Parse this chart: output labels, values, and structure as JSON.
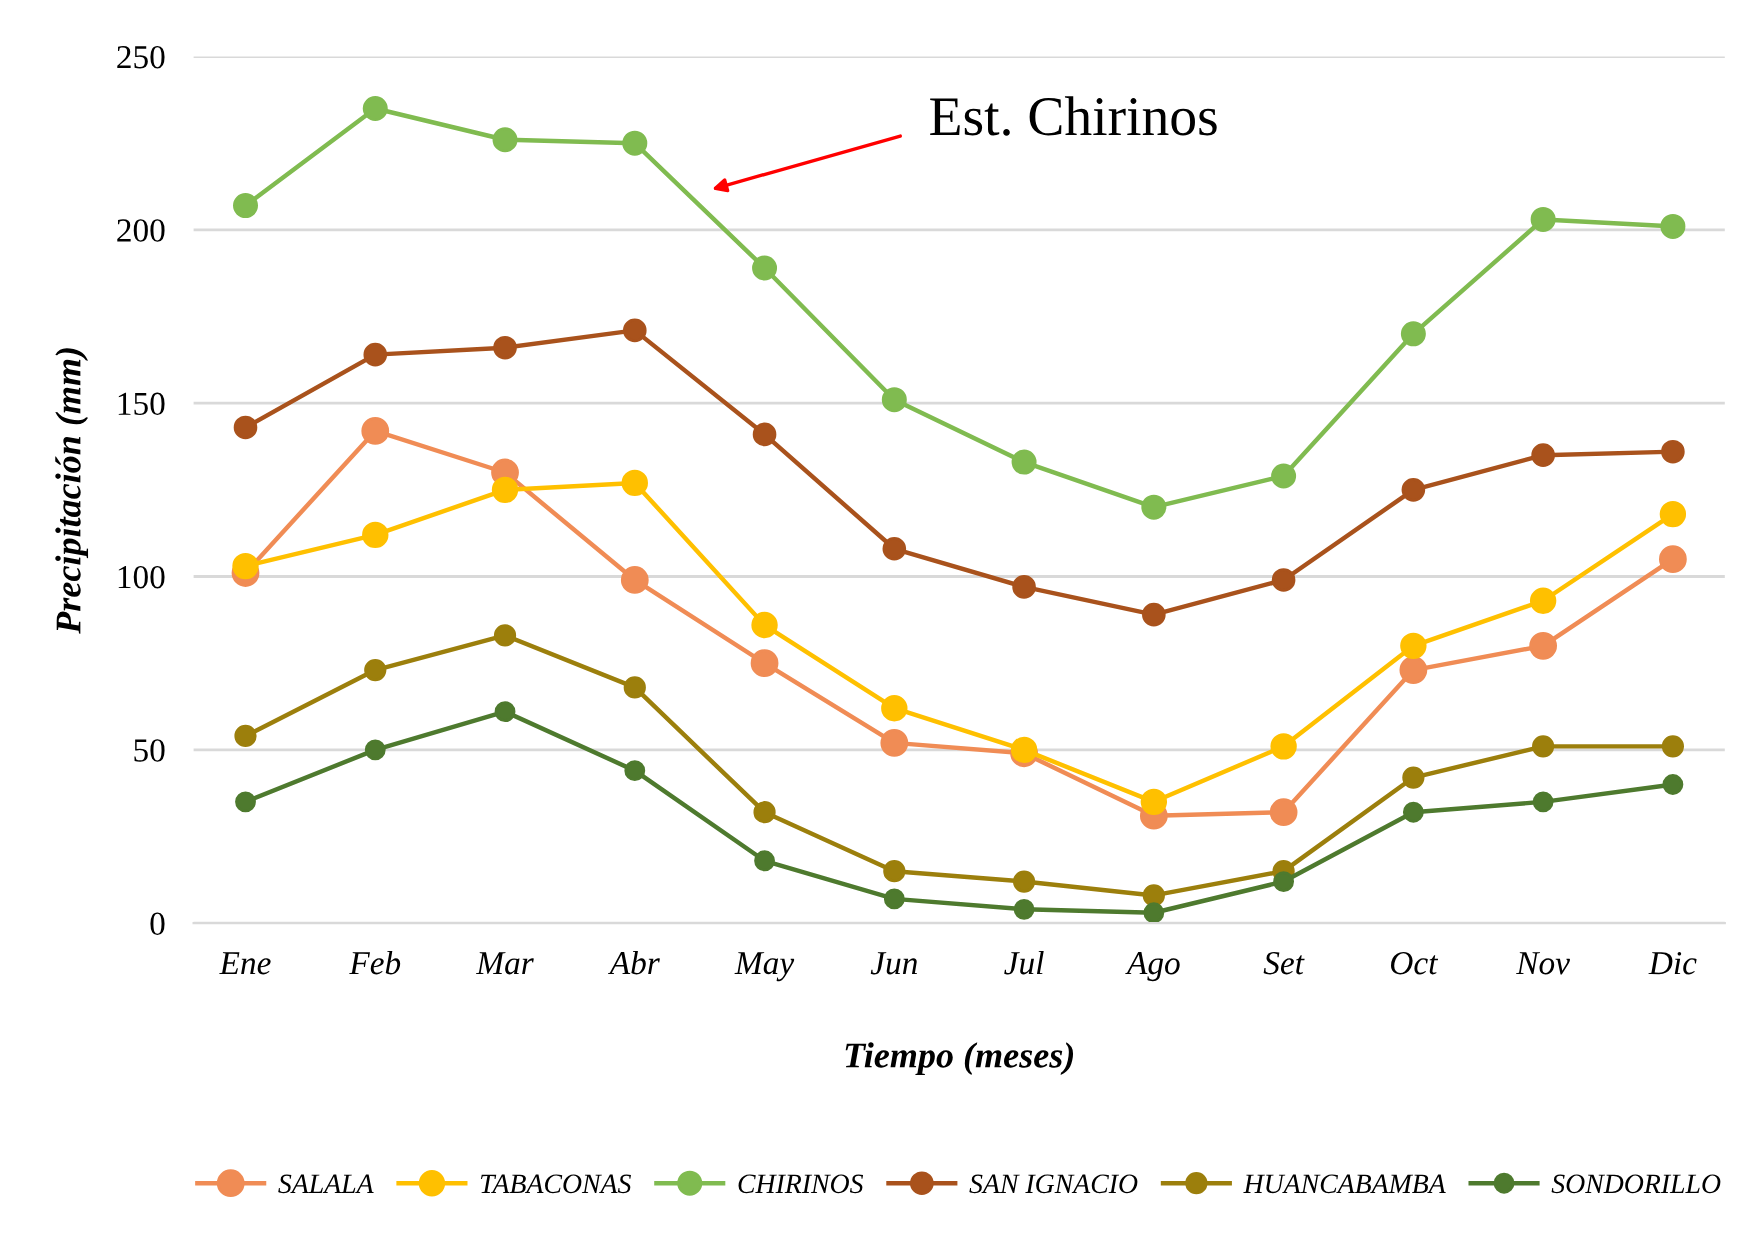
{
  "chart_data": {
    "type": "line",
    "xlabel": "Tiempo (meses)",
    "ylabel": "Precipitación (mm)",
    "categories": [
      "Ene",
      "Feb",
      "Mar",
      "Abr",
      "May",
      "Jun",
      "Jul",
      "Ago",
      "Set",
      "Oct",
      "Nov",
      "Dic"
    ],
    "series": [
      {
        "name": "SALALA",
        "color": "#f08c55",
        "values": [
          101,
          142,
          130,
          99,
          75,
          52,
          49,
          31,
          32,
          73,
          80,
          105
        ]
      },
      {
        "name": "TABACONAS",
        "color": "#ffc000",
        "values": [
          103,
          112,
          125,
          127,
          86,
          62,
          50,
          35,
          51,
          80,
          93,
          118
        ]
      },
      {
        "name": "CHIRINOS",
        "color": "#80bb50",
        "values": [
          207,
          235,
          226,
          225,
          189,
          151,
          133,
          120,
          129,
          170,
          203,
          201
        ]
      },
      {
        "name": "SAN IGNACIO",
        "color": "#a9521c",
        "values": [
          143,
          164,
          166,
          171,
          141,
          108,
          97,
          89,
          99,
          125,
          135,
          136
        ]
      },
      {
        "name": "HUANCABAMBA",
        "color": "#9c7f0c",
        "values": [
          54,
          73,
          83,
          68,
          32,
          15,
          12,
          8,
          15,
          42,
          51,
          51
        ]
      },
      {
        "name": "SONDORILLO",
        "color": "#4e7a2e",
        "values": [
          35,
          50,
          61,
          44,
          18,
          7,
          4,
          3,
          12,
          32,
          35,
          40
        ]
      }
    ],
    "ylim": [
      0,
      250
    ],
    "yticks": [
      0,
      50,
      100,
      150,
      200,
      250
    ],
    "grid": "y",
    "legend": "bottom",
    "marker": "circle",
    "line_style": "solid",
    "annotations": [
      "Est. Chirinos"
    ]
  }
}
